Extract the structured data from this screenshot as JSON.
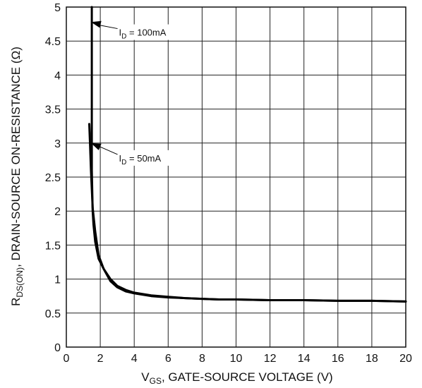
{
  "chart_data": {
    "type": "line",
    "xlabel": {
      "main": "V",
      "sub": "GS",
      "rest": ", GATE-SOURCE VOLTAGE (V)"
    },
    "ylabel": {
      "main": "R",
      "sub": "DS(ON)",
      "rest": ", DRAIN-SOURCE ON-RESISTANCE (Ω)"
    },
    "xlim": [
      0,
      20
    ],
    "ylim": [
      0,
      5
    ],
    "x_ticks": [
      "0",
      "2",
      "4",
      "6",
      "8",
      "10",
      "12",
      "14",
      "16",
      "18",
      "20"
    ],
    "y_ticks": [
      "0",
      "0.5",
      "1",
      "1.5",
      "2",
      "2.5",
      "3",
      "3.5",
      "4",
      "4.5",
      "5"
    ],
    "grid": true,
    "annotations": [
      {
        "label_main": "I",
        "label_sub": "D",
        "label_rest": " = 100mA",
        "target": [
          1.45,
          4.78
        ],
        "text_at": [
          3.1,
          4.6
        ]
      },
      {
        "label_main": "I",
        "label_sub": "D",
        "label_rest": " = 50mA",
        "target": [
          1.45,
          3.0
        ],
        "text_at": [
          3.1,
          2.75
        ]
      }
    ],
    "series": [
      {
        "label": "ID = 100mA",
        "x": [
          1.5,
          1.5,
          1.55,
          1.6,
          1.7,
          1.9,
          2.2,
          2.6,
          3.0,
          3.5,
          4.0,
          5.0,
          6.0,
          7.0,
          8.0,
          9.0,
          10.0,
          12.0,
          14.0,
          16.0,
          18.0,
          20.0
        ],
        "y": [
          5.0,
          2.6,
          2.0,
          1.8,
          1.55,
          1.3,
          1.15,
          1.0,
          0.9,
          0.84,
          0.8,
          0.76,
          0.74,
          0.72,
          0.71,
          0.7,
          0.7,
          0.69,
          0.69,
          0.68,
          0.68,
          0.67
        ]
      },
      {
        "label": "ID = 50mA",
        "x": [
          1.35,
          1.4,
          1.45,
          1.55,
          1.7,
          1.9,
          2.2,
          2.6,
          3.0,
          3.5,
          4.0,
          5.0,
          6.0,
          7.0,
          8.0,
          9.0,
          10.0,
          12.0,
          14.0,
          16.0,
          18.0,
          20.0
        ],
        "y": [
          3.28,
          2.95,
          2.6,
          2.05,
          1.7,
          1.35,
          1.15,
          0.97,
          0.88,
          0.82,
          0.79,
          0.75,
          0.73,
          0.72,
          0.71,
          0.7,
          0.7,
          0.69,
          0.69,
          0.68,
          0.68,
          0.67
        ]
      }
    ]
  }
}
